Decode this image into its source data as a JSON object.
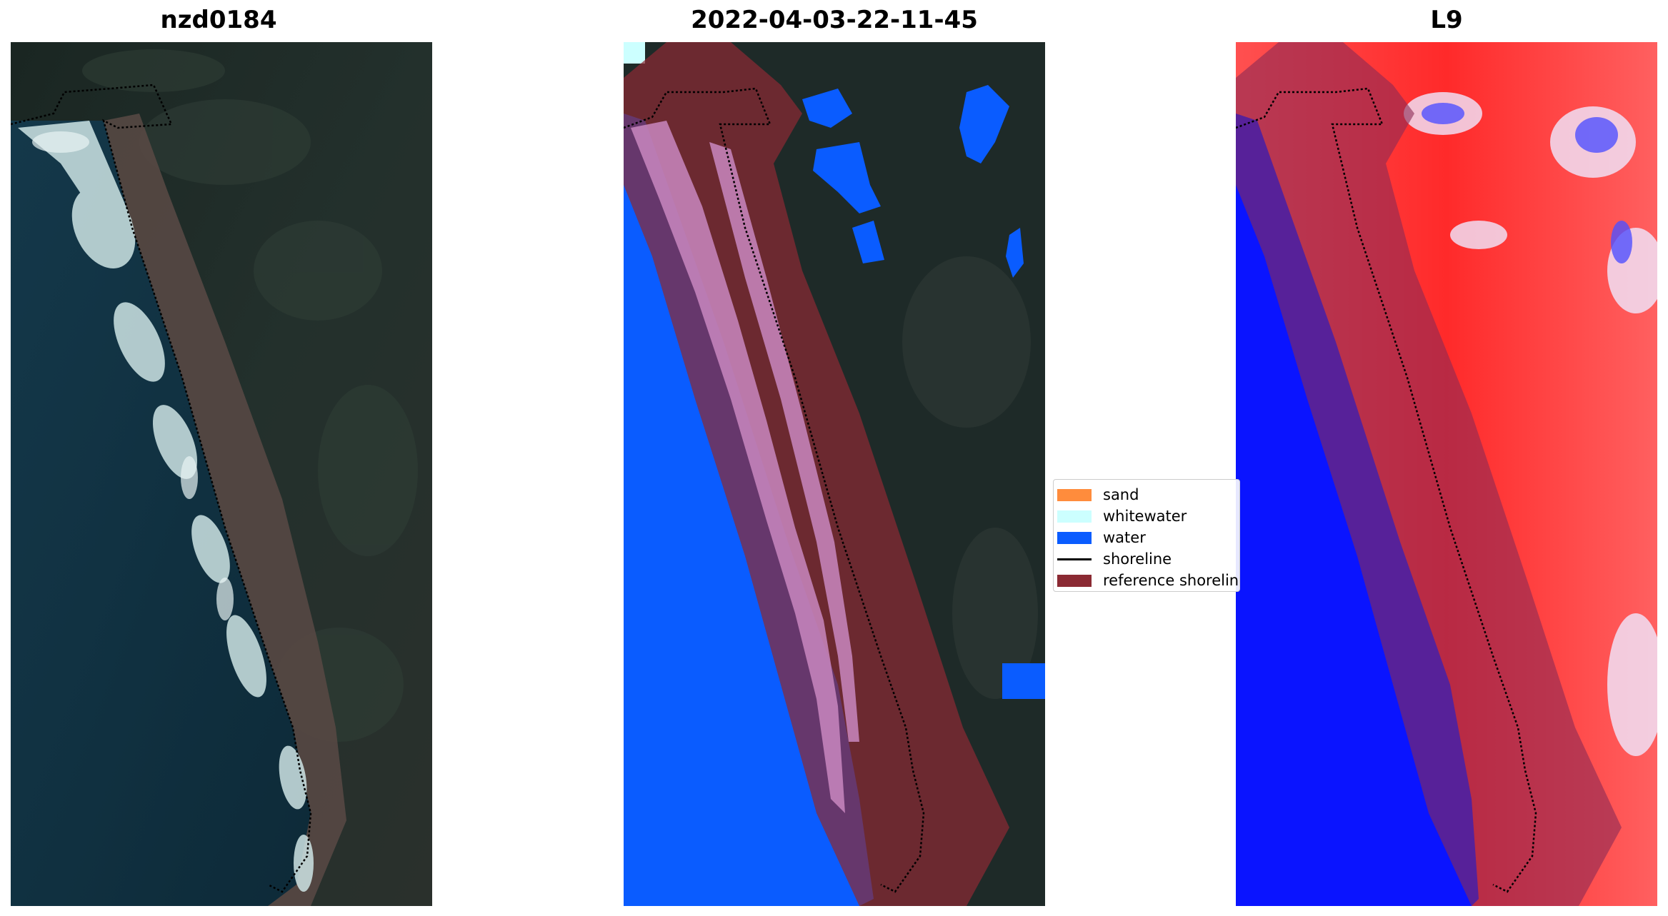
{
  "panels": [
    {
      "title": "nzd0184"
    },
    {
      "title": "2022-04-03-22-11-45"
    },
    {
      "title": "L9"
    }
  ],
  "legend": {
    "items": [
      {
        "label": "sand",
        "color": "#ff8c3c"
      },
      {
        "label": "whitewater",
        "color": "#ccffff"
      },
      {
        "label": "water",
        "color": "#0a5cff"
      },
      {
        "label": "shoreline",
        "color": "#000000"
      },
      {
        "label": "reference shoreline",
        "color": "#8b2a33"
      }
    ]
  },
  "colors": {
    "background": "#ffffff",
    "land": "#1c2a28",
    "sea": "#0f2c3a",
    "water_class": "#0a5cff",
    "reference_buffer": "#8b2a33",
    "index_high": "#ff1a1a",
    "index_low": "#0000ff"
  }
}
